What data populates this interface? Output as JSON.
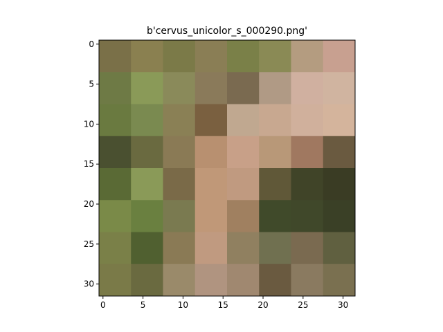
{
  "chart_data": {
    "type": "image",
    "title": "b'cervus_unicolor_s_000290.png'",
    "xlim": [
      -0.5,
      31.5
    ],
    "ylim": [
      31.5,
      -0.5
    ],
    "xticks": [
      0,
      5,
      10,
      15,
      20,
      25,
      30
    ],
    "yticks": [
      0,
      5,
      10,
      15,
      20,
      25,
      30
    ],
    "pixels": [
      [
        "#7a7048",
        "#8a8050",
        "#7b7a48",
        "#8a7e55",
        "#7a8048",
        "#8a8a55",
        "#b49c80",
        "#c8a090"
      ],
      [
        "#6e7a45",
        "#8a9a58",
        "#8a8a5a",
        "#8a7a5a",
        "#7a6a50",
        "#b09a85",
        "#d0b0a0",
        "#d0b4a0"
      ],
      [
        "#6a7a40",
        "#7a8a50",
        "#8a8055",
        "#7a6040",
        "#c0a890",
        "#c8a890",
        "#d0b09c",
        "#d4b49c"
      ],
      [
        "#4a5030",
        "#6a6a40",
        "#8a7a55",
        "#b89070",
        "#c8a088",
        "#b89878",
        "#a07860",
        "#6a5a40"
      ],
      [
        "#5a6a35",
        "#8a9a58",
        "#7a6a48",
        "#c09878",
        "#c09a80",
        "#605838",
        "#404428",
        "#3a3c24"
      ],
      [
        "#7a8a48",
        "#6a8040",
        "#7a7a50",
        "#c09878",
        "#a08060",
        "#404a2a",
        "#40482a",
        "#3a4026"
      ],
      [
        "#7a8048",
        "#506030",
        "#8a7a55",
        "#c09a80",
        "#908060",
        "#707050",
        "#7a6a50",
        "#606040"
      ],
      [
        "#7a7a48",
        "#6a6a40",
        "#9a8a6a",
        "#b09480",
        "#a08870",
        "#6a5a40",
        "#8a7a60",
        "#7a7050"
      ]
    ]
  }
}
